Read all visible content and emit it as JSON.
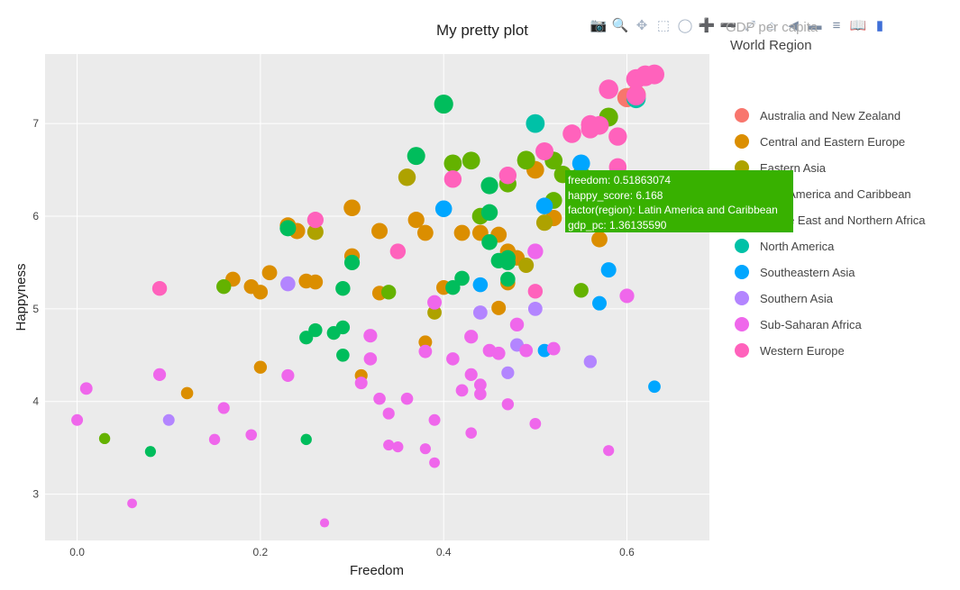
{
  "chart_data": {
    "type": "scatter",
    "title": "My pretty plot",
    "xlabel": "Freedom",
    "ylabel": "Happyness",
    "xlim": [
      -0.035,
      0.69
    ],
    "ylim": [
      2.5,
      7.75
    ],
    "xticks": [
      0.0,
      0.2,
      0.4,
      0.6
    ],
    "xtick_labels": [
      "0.0",
      "0.2",
      "0.4",
      "0.6"
    ],
    "yticks": [
      3,
      4,
      5,
      6,
      7
    ],
    "ytick_labels": [
      "3",
      "4",
      "5",
      "6",
      "7"
    ],
    "grid": true,
    "legend_position": "right",
    "size_legend_title": "GDP per capita",
    "color_legend_title": "World Region",
    "series": [
      {
        "name": "Australia and New Zealand",
        "color": "#F8766D",
        "points": [
          [
            0.6,
            7.28
          ],
          [
            0.61,
            7.31
          ]
        ]
      },
      {
        "name": "Central and Eastern Europe",
        "color": "#DB8E00",
        "points": [
          [
            0.23,
            5.9
          ],
          [
            0.24,
            5.84
          ],
          [
            0.3,
            6.09
          ],
          [
            0.33,
            5.84
          ],
          [
            0.37,
            5.96
          ],
          [
            0.38,
            5.82
          ],
          [
            0.42,
            5.82
          ],
          [
            0.44,
            5.82
          ],
          [
            0.46,
            5.8
          ],
          [
            0.17,
            5.32
          ],
          [
            0.21,
            5.39
          ],
          [
            0.2,
            5.18
          ],
          [
            0.19,
            5.24
          ],
          [
            0.26,
            5.29
          ],
          [
            0.25,
            5.3
          ],
          [
            0.3,
            5.57
          ],
          [
            0.33,
            5.17
          ],
          [
            0.4,
            5.23
          ],
          [
            0.47,
            5.62
          ],
          [
            0.48,
            5.55
          ],
          [
            0.49,
            6.6
          ],
          [
            0.38,
            4.64
          ],
          [
            0.31,
            4.28
          ],
          [
            0.2,
            4.37
          ],
          [
            0.12,
            4.09
          ],
          [
            0.47,
            5.28
          ],
          [
            0.46,
            5.01
          ],
          [
            0.52,
            5.98
          ],
          [
            0.57,
            5.75
          ],
          [
            0.5,
            6.5
          ]
        ]
      },
      {
        "name": "Eastern Asia",
        "color": "#AEA200",
        "points": [
          [
            0.36,
            6.42
          ],
          [
            0.26,
            5.83
          ],
          [
            0.49,
            5.47
          ],
          [
            0.39,
            4.96
          ],
          [
            0.51,
            5.93
          ],
          [
            0.59,
            6.45
          ]
        ]
      },
      {
        "name": "Latin America and Caribbean",
        "color": "#64B200",
        "points": [
          [
            0.52,
            6.17
          ],
          [
            0.53,
            6.45
          ],
          [
            0.55,
            6.45
          ],
          [
            0.58,
            7.07
          ],
          [
            0.41,
            6.57
          ],
          [
            0.43,
            6.6
          ],
          [
            0.47,
            6.35
          ],
          [
            0.44,
            6.0
          ],
          [
            0.49,
            6.61
          ],
          [
            0.55,
            5.2
          ],
          [
            0.34,
            5.18
          ],
          [
            0.16,
            5.24
          ],
          [
            0.03,
            3.6
          ],
          [
            0.49,
            6.6
          ],
          [
            0.52,
            6.6
          ]
        ]
      },
      {
        "name": "Middle East and Northern Africa",
        "color": "#00BD5C",
        "points": [
          [
            0.4,
            7.21
          ],
          [
            0.37,
            6.65
          ],
          [
            0.45,
            6.33
          ],
          [
            0.47,
            5.5
          ],
          [
            0.23,
            5.87
          ],
          [
            0.3,
            5.5
          ],
          [
            0.29,
            5.22
          ],
          [
            0.26,
            4.77
          ],
          [
            0.25,
            4.69
          ],
          [
            0.29,
            4.8
          ],
          [
            0.28,
            4.74
          ],
          [
            0.29,
            4.5
          ],
          [
            0.25,
            3.59
          ],
          [
            0.08,
            3.46
          ],
          [
            0.42,
            5.33
          ],
          [
            0.47,
            5.55
          ],
          [
            0.46,
            5.52
          ],
          [
            0.47,
            5.32
          ],
          [
            0.45,
            5.72
          ],
          [
            0.41,
            5.23
          ],
          [
            0.45,
            6.04
          ]
        ]
      },
      {
        "name": "North America",
        "color": "#00C1A7",
        "points": [
          [
            0.5,
            7.0
          ],
          [
            0.61,
            7.27
          ]
        ]
      },
      {
        "name": "Southeastern Asia",
        "color": "#00A6FF",
        "points": [
          [
            0.4,
            6.08
          ],
          [
            0.55,
            6.57
          ],
          [
            0.44,
            5.26
          ],
          [
            0.58,
            5.42
          ],
          [
            0.57,
            5.06
          ],
          [
            0.51,
            4.55
          ],
          [
            0.63,
            4.16
          ],
          [
            0.51,
            6.11
          ]
        ]
      },
      {
        "name": "Southern Asia",
        "color": "#B385FF",
        "points": [
          [
            0.23,
            5.27
          ],
          [
            0.44,
            4.96
          ],
          [
            0.48,
            4.61
          ],
          [
            0.5,
            5.0
          ],
          [
            0.47,
            4.31
          ],
          [
            0.56,
            4.43
          ],
          [
            0.1,
            3.8
          ]
        ]
      },
      {
        "name": "Sub-Saharan Africa",
        "color": "#EF67EB",
        "points": [
          [
            0.0,
            3.8
          ],
          [
            0.01,
            4.14
          ],
          [
            0.06,
            2.9
          ],
          [
            0.09,
            4.29
          ],
          [
            0.15,
            3.59
          ],
          [
            0.16,
            3.93
          ],
          [
            0.19,
            3.64
          ],
          [
            0.23,
            4.28
          ],
          [
            0.27,
            2.69
          ],
          [
            0.31,
            4.2
          ],
          [
            0.32,
            4.46
          ],
          [
            0.32,
            4.71
          ],
          [
            0.33,
            4.03
          ],
          [
            0.34,
            3.87
          ],
          [
            0.34,
            3.53
          ],
          [
            0.35,
            3.51
          ],
          [
            0.36,
            4.03
          ],
          [
            0.38,
            4.54
          ],
          [
            0.38,
            3.49
          ],
          [
            0.39,
            3.8
          ],
          [
            0.39,
            3.34
          ],
          [
            0.39,
            5.07
          ],
          [
            0.41,
            4.46
          ],
          [
            0.42,
            4.12
          ],
          [
            0.43,
            3.66
          ],
          [
            0.43,
            4.7
          ],
          [
            0.43,
            4.29
          ],
          [
            0.44,
            4.08
          ],
          [
            0.44,
            4.18
          ],
          [
            0.45,
            4.55
          ],
          [
            0.46,
            4.52
          ],
          [
            0.47,
            3.97
          ],
          [
            0.48,
            4.83
          ],
          [
            0.49,
            4.55
          ],
          [
            0.5,
            5.62
          ],
          [
            0.5,
            3.76
          ],
          [
            0.52,
            4.57
          ],
          [
            0.58,
            3.47
          ],
          [
            0.6,
            5.14
          ]
        ]
      },
      {
        "name": "Western Europe",
        "color": "#FF62BC",
        "points": [
          [
            0.09,
            5.22
          ],
          [
            0.26,
            5.96
          ],
          [
            0.35,
            5.62
          ],
          [
            0.41,
            6.4
          ],
          [
            0.47,
            6.44
          ],
          [
            0.5,
            5.19
          ],
          [
            0.51,
            6.7
          ],
          [
            0.54,
            6.89
          ],
          [
            0.56,
            6.94
          ],
          [
            0.56,
            6.99
          ],
          [
            0.57,
            6.98
          ],
          [
            0.58,
            7.37
          ],
          [
            0.59,
            6.86
          ],
          [
            0.59,
            6.53
          ],
          [
            0.61,
            7.3
          ],
          [
            0.61,
            7.48
          ],
          [
            0.62,
            7.51
          ],
          [
            0.62,
            7.52
          ],
          [
            0.63,
            7.53
          ]
        ]
      }
    ],
    "tooltip": {
      "freedom": "freedom: 0.51863074",
      "happy_score": "happy_score: 6.168",
      "region": "factor(region): Latin America and Caribbean",
      "gdp": "gdp_pc: 1.36135590"
    }
  }
}
